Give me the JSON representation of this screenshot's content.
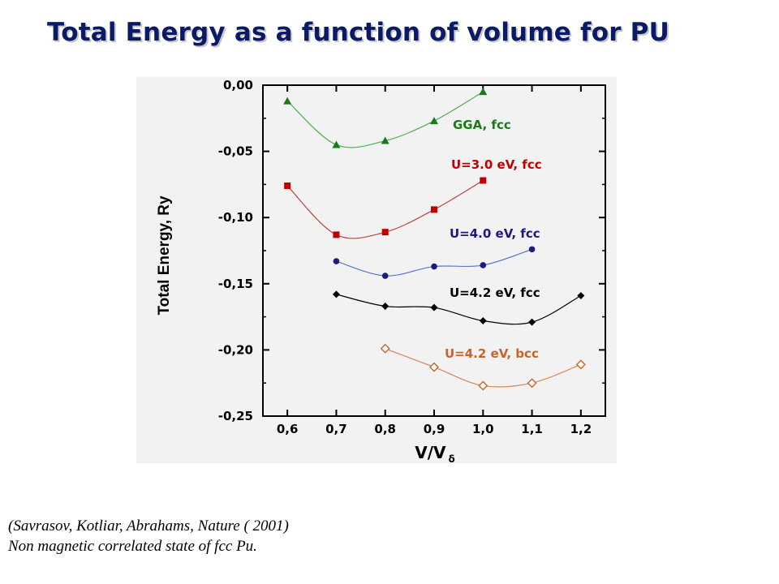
{
  "slide": {
    "title": "Total Energy as a function of volume for PU",
    "caption_lines": [
      "(Savrasov, Kotliar, Abrahams,  Nature ( 2001)",
      "Non magnetic correlated state of fcc Pu."
    ]
  },
  "chart_data": {
    "type": "line",
    "title": "",
    "xlabel": "V/V",
    "xlabel_sub": "δ",
    "ylabel": "Total Energy, Ry",
    "xlim": [
      0.55,
      1.25
    ],
    "ylim": [
      -0.25,
      0.0
    ],
    "xticks": [
      "0,6",
      "0,7",
      "0,8",
      "0,9",
      "1,0",
      "1,1",
      "1,2"
    ],
    "yticks": [
      "0,00",
      "-0,05",
      "-0,10",
      "-0,15",
      "-0,20",
      "-0,25"
    ],
    "grid": false,
    "series": [
      {
        "name": "GGA, fcc",
        "color": "#1a7a1a",
        "line_color": "#4caf50",
        "marker": "triangle",
        "x": [
          0.6,
          0.7,
          0.8,
          0.9,
          1.0
        ],
        "y": [
          -0.012,
          -0.045,
          -0.042,
          -0.027,
          -0.005
        ]
      },
      {
        "name": "U=3.0 eV, fcc",
        "color": "#c00000",
        "line_color": "#c04040",
        "marker": "square",
        "x": [
          0.6,
          0.7,
          0.8,
          0.9,
          1.0
        ],
        "y": [
          -0.076,
          -0.113,
          -0.111,
          -0.094,
          -0.072
        ]
      },
      {
        "name": "U=4.0 eV, fcc",
        "color": "#1a1a80",
        "line_color": "#5a78c8",
        "marker": "circle",
        "x": [
          0.7,
          0.8,
          0.9,
          1.0,
          1.1
        ],
        "y": [
          -0.133,
          -0.144,
          -0.137,
          -0.136,
          -0.124
        ]
      },
      {
        "name": "U=4.2 eV, fcc",
        "color": "#000000",
        "line_color": "#000000",
        "marker": "diamond",
        "x": [
          0.7,
          0.8,
          0.9,
          1.0,
          1.1,
          1.2
        ],
        "y": [
          -0.158,
          -0.167,
          -0.168,
          -0.178,
          -0.179,
          -0.159
        ]
      },
      {
        "name": "U=4.2 eV, bcc",
        "color": "#c8642a",
        "line_color": "#d2875a",
        "marker": "diamond-open",
        "x": [
          0.8,
          0.9,
          1.0,
          1.1,
          1.2
        ],
        "y": [
          -0.199,
          -0.213,
          -0.227,
          -0.225,
          -0.211
        ]
      }
    ]
  }
}
